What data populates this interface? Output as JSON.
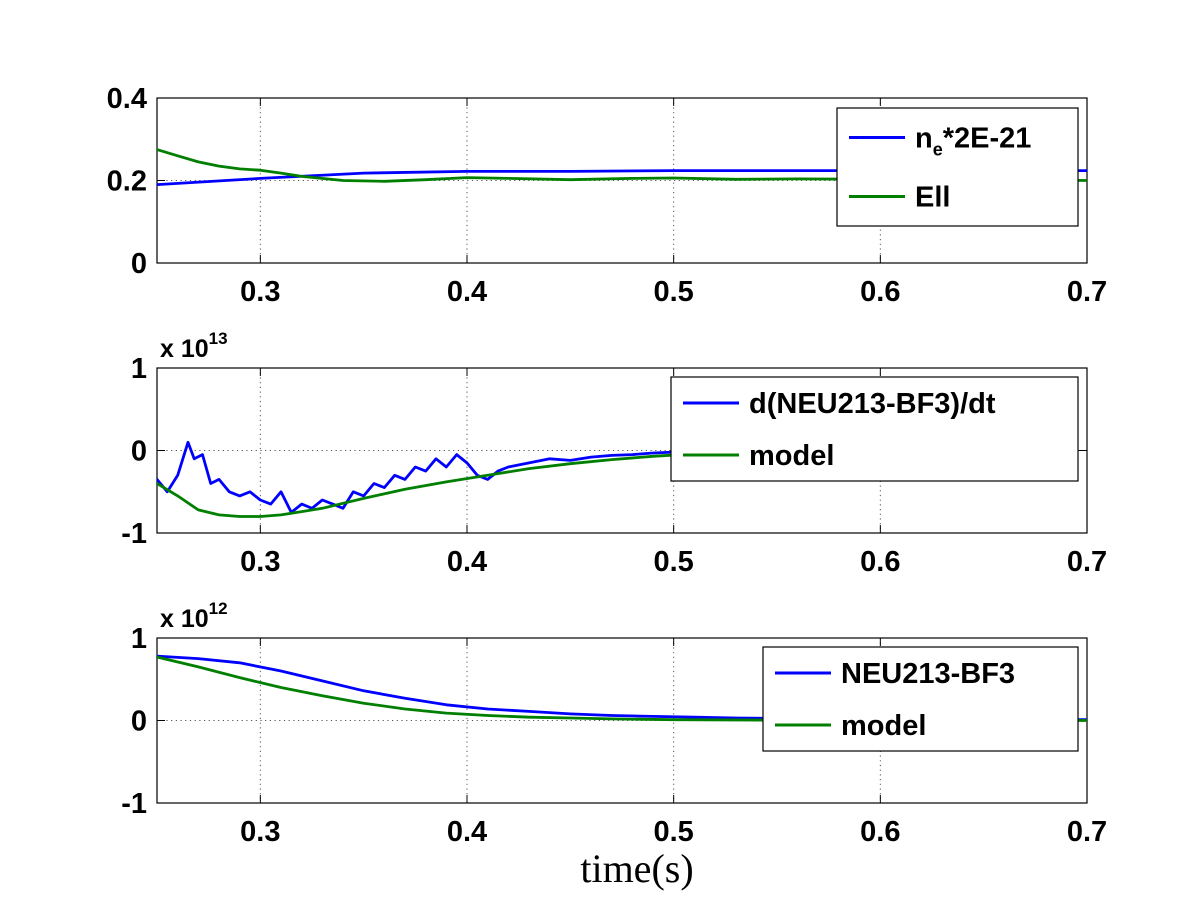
{
  "chart_data": [
    {
      "type": "line",
      "xlim": [
        0.25,
        0.7
      ],
      "ylim": [
        0,
        0.4
      ],
      "xticks": [
        "0.3",
        "0.4",
        "0.5",
        "0.6",
        "0.7"
      ],
      "yticks": [
        "0",
        "0.2",
        "0.4"
      ],
      "exponent": null,
      "grid": true,
      "legend_position": "top-right",
      "series": [
        {
          "name_main": "n",
          "name_sub": "e",
          "name_rest": "*2E-21",
          "color": "#0000ff",
          "x": [
            0.25,
            0.3,
            0.35,
            0.4,
            0.45,
            0.5,
            0.55,
            0.6,
            0.65,
            0.7
          ],
          "y": [
            0.19,
            0.205,
            0.218,
            0.222,
            0.222,
            0.224,
            0.224,
            0.224,
            0.224,
            0.224
          ]
        },
        {
          "name_main": "Ell",
          "name_sub": "",
          "name_rest": "",
          "color": "#007f00",
          "x": [
            0.25,
            0.26,
            0.27,
            0.28,
            0.29,
            0.3,
            0.31,
            0.32,
            0.34,
            0.36,
            0.38,
            0.4,
            0.42,
            0.45,
            0.48,
            0.5,
            0.53,
            0.56,
            0.6,
            0.63,
            0.66,
            0.7
          ],
          "y": [
            0.275,
            0.26,
            0.245,
            0.235,
            0.228,
            0.225,
            0.218,
            0.21,
            0.2,
            0.198,
            0.202,
            0.207,
            0.205,
            0.202,
            0.205,
            0.206,
            0.203,
            0.204,
            0.203,
            0.204,
            0.202,
            0.2
          ]
        }
      ]
    },
    {
      "type": "line",
      "xlim": [
        0.25,
        0.7
      ],
      "ylim": [
        -1,
        1
      ],
      "xticks": [
        "0.3",
        "0.4",
        "0.5",
        "0.6",
        "0.7"
      ],
      "yticks": [
        "-1",
        "0",
        "1"
      ],
      "exponent": {
        "base": "x 10",
        "power": "13"
      },
      "grid": true,
      "legend_position": "top-right",
      "series": [
        {
          "name_main": "d(NEU213-BF3)/dt",
          "name_sub": "",
          "name_rest": "",
          "color": "#0000ff",
          "x": [
            0.25,
            0.255,
            0.26,
            0.265,
            0.268,
            0.272,
            0.276,
            0.28,
            0.285,
            0.29,
            0.295,
            0.3,
            0.305,
            0.31,
            0.315,
            0.32,
            0.325,
            0.33,
            0.335,
            0.34,
            0.345,
            0.35,
            0.355,
            0.36,
            0.365,
            0.37,
            0.375,
            0.38,
            0.385,
            0.39,
            0.395,
            0.4,
            0.405,
            0.41,
            0.415,
            0.42,
            0.43,
            0.44,
            0.45,
            0.46,
            0.47,
            0.48,
            0.49,
            0.5
          ],
          "y": [
            -0.35,
            -0.5,
            -0.3,
            0.1,
            -0.1,
            -0.05,
            -0.4,
            -0.35,
            -0.5,
            -0.55,
            -0.5,
            -0.6,
            -0.65,
            -0.5,
            -0.75,
            -0.65,
            -0.7,
            -0.6,
            -0.65,
            -0.7,
            -0.5,
            -0.55,
            -0.4,
            -0.45,
            -0.3,
            -0.35,
            -0.2,
            -0.25,
            -0.1,
            -0.2,
            -0.05,
            -0.15,
            -0.3,
            -0.35,
            -0.25,
            -0.2,
            -0.15,
            -0.1,
            -0.12,
            -0.08,
            -0.06,
            -0.05,
            -0.03,
            -0.02
          ]
        },
        {
          "name_main": "model",
          "name_sub": "",
          "name_rest": "",
          "color": "#007f00",
          "x": [
            0.25,
            0.26,
            0.27,
            0.28,
            0.29,
            0.3,
            0.31,
            0.32,
            0.33,
            0.34,
            0.35,
            0.37,
            0.39,
            0.41,
            0.43,
            0.45,
            0.47,
            0.49,
            0.51,
            0.53
          ],
          "y": [
            -0.4,
            -0.55,
            -0.72,
            -0.78,
            -0.8,
            -0.8,
            -0.78,
            -0.74,
            -0.7,
            -0.64,
            -0.58,
            -0.47,
            -0.38,
            -0.3,
            -0.22,
            -0.16,
            -0.11,
            -0.07,
            -0.04,
            -0.02
          ]
        }
      ]
    },
    {
      "type": "line",
      "xlim": [
        0.25,
        0.7
      ],
      "ylim": [
        -1,
        1
      ],
      "xticks": [
        "0.3",
        "0.4",
        "0.5",
        "0.6",
        "0.7"
      ],
      "yticks": [
        "-1",
        "0",
        "1"
      ],
      "exponent": {
        "base": "x 10",
        "power": "12"
      },
      "grid": true,
      "legend_position": "top-right",
      "series": [
        {
          "name_main": "NEU213-BF3",
          "name_sub": "",
          "name_rest": "",
          "color": "#0000ff",
          "x": [
            0.25,
            0.27,
            0.29,
            0.31,
            0.33,
            0.35,
            0.37,
            0.39,
            0.41,
            0.43,
            0.45,
            0.47,
            0.49,
            0.51,
            0.53,
            0.55,
            0.57,
            0.6,
            0.65,
            0.7
          ],
          "y": [
            0.78,
            0.75,
            0.7,
            0.6,
            0.48,
            0.36,
            0.27,
            0.19,
            0.14,
            0.11,
            0.08,
            0.06,
            0.05,
            0.04,
            0.03,
            0.025,
            0.02,
            0.02,
            0.01,
            0.01
          ]
        },
        {
          "name_main": "model",
          "name_sub": "",
          "name_rest": "",
          "color": "#007f00",
          "x": [
            0.25,
            0.27,
            0.29,
            0.31,
            0.33,
            0.35,
            0.37,
            0.39,
            0.41,
            0.43,
            0.45,
            0.47,
            0.5,
            0.55,
            0.6,
            0.65,
            0.7
          ],
          "y": [
            0.77,
            0.65,
            0.52,
            0.4,
            0.3,
            0.21,
            0.14,
            0.09,
            0.06,
            0.04,
            0.03,
            0.02,
            0.01,
            0.005,
            0.0,
            0.0,
            0.0
          ]
        }
      ]
    }
  ],
  "figure": {
    "xlabel": "time(s)"
  }
}
